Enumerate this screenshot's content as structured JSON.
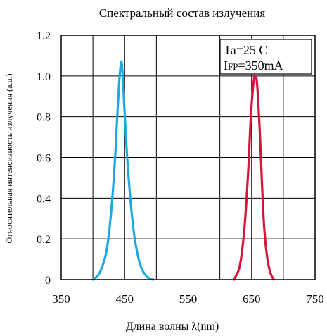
{
  "chart_data": {
    "type": "line",
    "title": "Спектральный состав излучения",
    "xlabel": "Длина волны λ(nm)",
    "ylabel": "Относительная интенсивность излучения (a.u.)",
    "xlim": [
      350,
      750
    ],
    "ylim": [
      0,
      1.2
    ],
    "x_ticks": [
      "350",
      "450",
      "550",
      "650",
      "750"
    ],
    "y_ticks": [
      "0",
      "0.2",
      "0.4",
      "0.6",
      "0.8",
      "1.0",
      "1.2"
    ],
    "x_ticks_values": [
      350,
      450,
      550,
      650,
      750
    ],
    "y_ticks_values": [
      0,
      0.2,
      0.4,
      0.6,
      0.8,
      1.0,
      1.2
    ],
    "x_gridlines": [
      350,
      400,
      450,
      500,
      550,
      600,
      650,
      700,
      750
    ],
    "y_gridlines": [
      0,
      0.2,
      0.4,
      0.6,
      0.8,
      1.0,
      1.2
    ],
    "grid": true,
    "colors": {
      "blue": "#1ea7e1",
      "red": "#d4163c",
      "grid": "#000000"
    },
    "series": [
      {
        "color": "#1ea7e1",
        "x": [
          400,
          410,
          420,
          425,
          430,
          435,
          438,
          441,
          443,
          445,
          447,
          449,
          452,
          455,
          460,
          465,
          470,
          475,
          480,
          485,
          490,
          495
        ],
        "y": [
          0,
          0.03,
          0.12,
          0.22,
          0.38,
          0.6,
          0.78,
          0.95,
          1.03,
          1.07,
          1.0,
          0.88,
          0.7,
          0.55,
          0.36,
          0.22,
          0.13,
          0.07,
          0.035,
          0.015,
          0.005,
          0
        ]
      },
      {
        "color": "#d4163c",
        "x": [
          622,
          630,
          635,
          640,
          645,
          648,
          651,
          654,
          656,
          658,
          660,
          663,
          666,
          670,
          675,
          680,
          685
        ],
        "y": [
          0,
          0.05,
          0.14,
          0.3,
          0.55,
          0.75,
          0.9,
          0.99,
          1.0,
          0.98,
          0.9,
          0.72,
          0.5,
          0.25,
          0.1,
          0.03,
          0
        ]
      }
    ],
    "annotation": {
      "line1": "Ta=25 C",
      "line2_prefix": "I",
      "line2_sub": "FP",
      "line2_suffix": "=350mA"
    }
  }
}
